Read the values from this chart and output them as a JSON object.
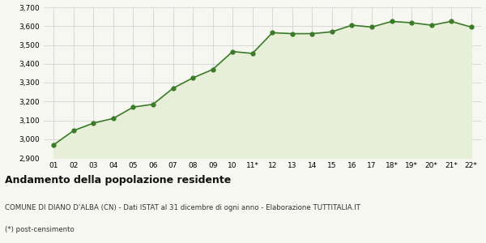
{
  "x_labels": [
    "01",
    "02",
    "03",
    "04",
    "05",
    "06",
    "07",
    "08",
    "09",
    "10",
    "11*",
    "12",
    "13",
    "14",
    "15",
    "16",
    "17",
    "18*",
    "19*",
    "20*",
    "21*",
    "22*"
  ],
  "values": [
    2970,
    3045,
    3085,
    3110,
    3170,
    3185,
    3270,
    3325,
    3370,
    3465,
    3455,
    3565,
    3560,
    3560,
    3570,
    3605,
    3595,
    3625,
    3618,
    3605,
    3625,
    3595
  ],
  "line_color": "#3a7a28",
  "fill_color": "#e8efd8",
  "marker_color": "#3a7a28",
  "bg_color": "#f7f7f2",
  "grid_color": "#cccccc",
  "ylim": [
    2900,
    3700
  ],
  "yticks": [
    2900,
    3000,
    3100,
    3200,
    3300,
    3400,
    3500,
    3600,
    3700
  ],
  "title": "Andamento della popolazione residente",
  "subtitle": "COMUNE DI DIANO D'ALBA (CN) - Dati ISTAT al 31 dicembre di ogni anno - Elaborazione TUTTITALIA.IT",
  "footnote": "(*) post-censimento",
  "title_fontsize": 9,
  "subtitle_fontsize": 6.2,
  "footnote_fontsize": 6.2,
  "tick_fontsize": 6.5
}
